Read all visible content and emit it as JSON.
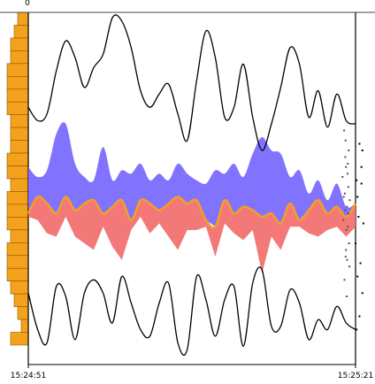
{
  "chart_data": {
    "type": "area",
    "histogram": {
      "top_label": "0",
      "values": [
        3,
        4,
        5,
        5,
        6,
        6,
        6,
        6,
        5,
        5,
        5,
        6,
        6,
        5,
        6,
        6,
        6,
        5,
        6,
        6,
        6,
        5,
        4,
        3,
        2,
        5
      ],
      "color": "#f4a11c"
    },
    "x_axis": {
      "start": "15:24:51",
      "end": "15:25:21",
      "range_seconds": [
        0,
        30
      ]
    },
    "y_range": [
      0,
      1
    ],
    "series": [
      {
        "role": "upper-envelope",
        "color": "#000000",
        "values": [
          0.73,
          0.69,
          0.71,
          0.84,
          0.93,
          0.88,
          0.79,
          0.85,
          0.89,
          1.0,
          0.99,
          0.91,
          0.78,
          0.73,
          0.77,
          0.8,
          0.71,
          0.63,
          0.81,
          0.96,
          0.88,
          0.7,
          0.73,
          0.86,
          0.7,
          0.6,
          0.68,
          0.79,
          0.91,
          0.86,
          0.7,
          0.78,
          0.67,
          0.77,
          0.69,
          0.68
        ]
      },
      {
        "role": "band-upper",
        "color": "#7b6cff",
        "values": [
          0.55,
          0.52,
          0.54,
          0.65,
          0.68,
          0.56,
          0.52,
          0.51,
          0.61,
          0.51,
          0.54,
          0.53,
          0.56,
          0.51,
          0.53,
          0.51,
          0.56,
          0.53,
          0.51,
          0.5,
          0.54,
          0.53,
          0.56,
          0.52,
          0.59,
          0.64,
          0.6,
          0.59,
          0.52,
          0.54,
          0.47,
          0.51,
          0.45,
          0.5,
          0.43,
          0.44
        ]
      },
      {
        "role": "mean",
        "color": "#f4a11c",
        "values": [
          0.41,
          0.46,
          0.44,
          0.41,
          0.46,
          0.42,
          0.44,
          0.45,
          0.41,
          0.43,
          0.45,
          0.39,
          0.45,
          0.44,
          0.42,
          0.44,
          0.46,
          0.44,
          0.45,
          0.39,
          0.37,
          0.45,
          0.41,
          0.43,
          0.42,
          0.4,
          0.41,
          0.38,
          0.44,
          0.39,
          0.42,
          0.45,
          0.41,
          0.43,
          0.4,
          0.44
        ]
      },
      {
        "role": "band-lower",
        "color": "#f27272",
        "values": [
          0.4,
          0.39,
          0.35,
          0.34,
          0.4,
          0.34,
          0.32,
          0.3,
          0.37,
          0.31,
          0.27,
          0.36,
          0.4,
          0.35,
          0.38,
          0.34,
          0.3,
          0.36,
          0.36,
          0.37,
          0.28,
          0.38,
          0.35,
          0.33,
          0.36,
          0.23,
          0.34,
          0.3,
          0.37,
          0.37,
          0.35,
          0.34,
          0.36,
          0.37,
          0.34,
          0.37
        ]
      },
      {
        "role": "lower-envelope",
        "color": "#000000",
        "values": [
          0.17,
          0.06,
          0.02,
          0.19,
          0.16,
          0.03,
          0.17,
          0.21,
          0.17,
          0.08,
          0.22,
          0.14,
          0.06,
          0.04,
          0.14,
          0.2,
          0.02,
          0.0,
          0.22,
          0.15,
          0.04,
          0.15,
          0.19,
          0.01,
          0.2,
          0.24,
          0.07,
          0.07,
          0.18,
          0.14,
          0.03,
          0.09,
          0.06,
          0.13,
          0.08,
          0.06
        ]
      }
    ],
    "scatter": {
      "points_left": [
        [
          28.5,
          0.55
        ],
        [
          29.1,
          0.49
        ],
        [
          28.3,
          0.42
        ],
        [
          29.0,
          0.37
        ],
        [
          28.8,
          0.27
        ],
        [
          29.4,
          0.25
        ],
        [
          28.1,
          0.21
        ],
        [
          28.7,
          0.16
        ],
        [
          29.2,
          0.6
        ],
        [
          28.4,
          0.63
        ],
        [
          29.5,
          0.45
        ],
        [
          28.2,
          0.47
        ],
        [
          27.6,
          0.52
        ],
        [
          28.9,
          0.53
        ],
        [
          28.6,
          0.36
        ],
        [
          27.9,
          0.46
        ],
        [
          28.0,
          0.66
        ],
        [
          29.3,
          0.32
        ],
        [
          28.5,
          0.3
        ],
        [
          29.0,
          0.56
        ],
        [
          28.8,
          0.43
        ],
        [
          27.8,
          0.39
        ],
        [
          28.3,
          0.58
        ],
        [
          29.1,
          0.41
        ],
        [
          28.4,
          0.28
        ]
      ],
      "points_right": [
        [
          31.2,
          0.62
        ],
        [
          31.5,
          0.6
        ],
        [
          30.9,
          0.51
        ],
        [
          31.4,
          0.5
        ],
        [
          31.1,
          0.4
        ],
        [
          31.6,
          0.38
        ],
        [
          30.8,
          0.32
        ],
        [
          31.3,
          0.26
        ],
        [
          31.0,
          0.22
        ],
        [
          31.5,
          0.17
        ],
        [
          31.2,
          0.1
        ],
        [
          30.9,
          0.06
        ],
        [
          31.4,
          0.55
        ],
        [
          31.0,
          0.46
        ]
      ]
    }
  }
}
